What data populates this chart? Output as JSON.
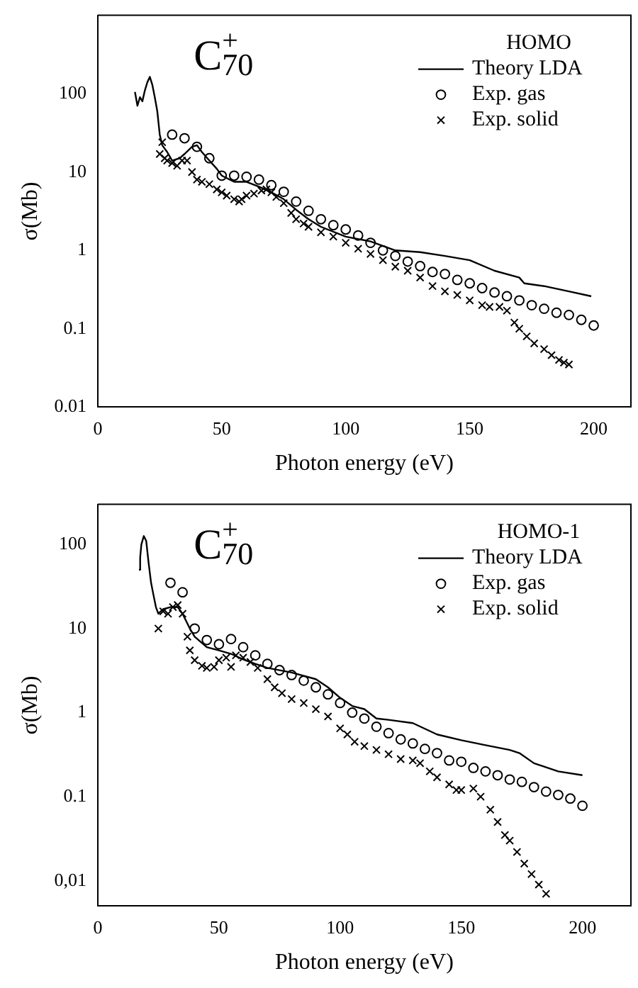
{
  "chart_data": [
    {
      "type": "line",
      "annotations": [
        "C$^{+}$$_{70}$"
      ],
      "legend_title": "HOMO",
      "xlabel": "Photon energy (eV)",
      "ylabel": "σ(Mb)",
      "log": "y",
      "legend": "top right",
      "grid": false,
      "xlim": [
        0,
        215
      ],
      "xticks": [
        0,
        50,
        100,
        150,
        200
      ],
      "ylim": [
        0.01,
        1000
      ],
      "yticks": [
        0.01,
        0.1,
        1,
        10,
        100
      ],
      "series": [
        {
          "name": "Theory LDA",
          "type": "line",
          "marker": "none",
          "line_style": "solid",
          "color": "#000000",
          "x": [
            15,
            16,
            17,
            18,
            19,
            20,
            21,
            22,
            23,
            24,
            25,
            26,
            28,
            30,
            33,
            35,
            38,
            40,
            42,
            45,
            48,
            50,
            55,
            60,
            65,
            70,
            75,
            80,
            85,
            90,
            100,
            110,
            120,
            130,
            140,
            150,
            160,
            170,
            172,
            180,
            190,
            199
          ],
          "values": [
            105,
            70,
            90,
            80,
            110,
            140,
            164,
            130,
            90,
            60,
            30,
            22,
            18,
            14,
            15,
            17,
            21,
            22,
            18,
            14,
            11,
            9,
            7.5,
            7.5,
            6.5,
            5.5,
            4.5,
            3.3,
            2.5,
            2,
            1.5,
            1.3,
            1,
            0.95,
            0.85,
            0.75,
            0.55,
            0.45,
            0.38,
            0.35,
            0.3,
            0.26
          ]
        },
        {
          "name": "Exp. gas",
          "type": "scatter",
          "marker": "circle",
          "color": "#000000",
          "x": [
            30,
            35,
            40,
            45,
            50,
            55,
            60,
            65,
            70,
            75,
            80,
            85,
            90,
            95,
            100,
            105,
            110,
            115,
            120,
            125,
            130,
            135,
            140,
            145,
            150,
            155,
            160,
            165,
            170,
            175,
            180,
            185,
            190,
            195,
            200
          ],
          "values": [
            30,
            27,
            21,
            15,
            9,
            9,
            8.7,
            8,
            6.8,
            5.6,
            4.2,
            3.2,
            2.5,
            2.1,
            1.85,
            1.55,
            1.25,
            1,
            0.85,
            0.72,
            0.63,
            0.53,
            0.5,
            0.42,
            0.38,
            0.33,
            0.29,
            0.26,
            0.23,
            0.2,
            0.18,
            0.16,
            0.15,
            0.13,
            0.11
          ]
        },
        {
          "name": "Exp. solid",
          "type": "scatter",
          "marker": "cross",
          "color": "#000000",
          "x": [
            25,
            26,
            27,
            28,
            30,
            32,
            34,
            36,
            38,
            40,
            42,
            45,
            48,
            50,
            52,
            55,
            57,
            58,
            60,
            63,
            66,
            68,
            70,
            72,
            75,
            78,
            80,
            83,
            85,
            90,
            95,
            100,
            105,
            110,
            115,
            120,
            125,
            130,
            135,
            140,
            145,
            150,
            155,
            158,
            162,
            165,
            168,
            170,
            173,
            176,
            180,
            183,
            186,
            188,
            190
          ],
          "values": [
            17,
            24,
            15,
            14,
            13,
            12,
            14,
            14,
            10,
            8,
            7.5,
            7,
            6,
            5.5,
            5,
            4.5,
            4.2,
            4.5,
            5,
            5.3,
            5.8,
            6,
            5.5,
            4.8,
            4,
            3,
            2.5,
            2.2,
            2,
            1.7,
            1.5,
            1.25,
            1.05,
            0.9,
            0.75,
            0.62,
            0.55,
            0.45,
            0.35,
            0.3,
            0.27,
            0.23,
            0.2,
            0.19,
            0.19,
            0.17,
            0.12,
            0.1,
            0.08,
            0.065,
            0.055,
            0.046,
            0.04,
            0.037,
            0.035
          ]
        }
      ]
    },
    {
      "type": "line",
      "annotations": [
        "C$^{+}$$_{70}$"
      ],
      "legend_title": "HOMO-1",
      "xlabel": "Photon energy (eV)",
      "ylabel": "σ(Mb)",
      "log": "y",
      "legend": "top right",
      "grid": false,
      "xlim": [
        0,
        220
      ],
      "xticks": [
        0,
        50,
        100,
        150,
        200
      ],
      "ylim": [
        0.005,
        300
      ],
      "yticks": [
        {
          "value": 0.01,
          "label": "0,01"
        },
        0.1,
        1,
        10,
        100
      ],
      "series": [
        {
          "name": "Theory LDA",
          "type": "line",
          "marker": "none",
          "line_style": "solid",
          "color": "#000000",
          "x": [
            17,
            17.5,
            18,
            19,
            20,
            21,
            22,
            23,
            24,
            25,
            26,
            27,
            30,
            33,
            35,
            38,
            40,
            45,
            50,
            55,
            60,
            65,
            70,
            80,
            90,
            95,
            100,
            105,
            110,
            115,
            120,
            130,
            140,
            150,
            160,
            170,
            174,
            180,
            190,
            200
          ],
          "values": [
            50,
            70,
            100,
            126,
            110,
            60,
            35,
            25,
            18,
            15,
            16,
            17,
            18,
            18,
            15,
            10,
            8,
            6,
            5.5,
            5,
            4.3,
            3.8,
            3.4,
            3,
            2.5,
            2,
            1.5,
            1.2,
            1.1,
            0.85,
            0.82,
            0.75,
            0.55,
            0.47,
            0.41,
            0.36,
            0.33,
            0.25,
            0.2,
            0.18
          ]
        },
        {
          "name": "Exp. gas",
          "type": "scatter",
          "marker": "circle",
          "color": "#000000",
          "x": [
            30,
            35,
            40,
            45,
            50,
            55,
            60,
            65,
            70,
            75,
            80,
            85,
            90,
            95,
            100,
            105,
            110,
            115,
            120,
            125,
            130,
            135,
            140,
            145,
            150,
            155,
            160,
            165,
            170,
            175,
            180,
            185,
            190,
            195,
            200
          ],
          "values": [
            35,
            27,
            10,
            7.3,
            6.5,
            7.5,
            6,
            4.8,
            3.8,
            3.2,
            2.8,
            2.4,
            2,
            1.65,
            1.3,
            1,
            0.85,
            0.68,
            0.57,
            0.48,
            0.43,
            0.37,
            0.33,
            0.27,
            0.26,
            0.22,
            0.2,
            0.18,
            0.16,
            0.15,
            0.13,
            0.115,
            0.105,
            0.095,
            0.078
          ]
        },
        {
          "name": "Exp. solid",
          "type": "scatter",
          "marker": "cross",
          "color": "#000000",
          "x": [
            25,
            27,
            29,
            31,
            33,
            35,
            37,
            38,
            40,
            43,
            45,
            48,
            50,
            53,
            55,
            57,
            60,
            63,
            66,
            70,
            73,
            76,
            80,
            85,
            90,
            95,
            100,
            103,
            106,
            110,
            115,
            120,
            125,
            130,
            133,
            137,
            140,
            145,
            148,
            150,
            155,
            158,
            162,
            165,
            168,
            170,
            173,
            176,
            179,
            182,
            185
          ],
          "values": [
            10,
            16,
            15,
            18,
            19,
            15,
            8,
            5.5,
            4.2,
            3.6,
            3.4,
            3.5,
            4.2,
            4.5,
            3.5,
            4.8,
            4.5,
            4,
            3.4,
            2.5,
            2,
            1.7,
            1.45,
            1.3,
            1.1,
            0.9,
            0.65,
            0.55,
            0.45,
            0.4,
            0.36,
            0.32,
            0.28,
            0.27,
            0.25,
            0.2,
            0.17,
            0.14,
            0.12,
            0.12,
            0.125,
            0.1,
            0.07,
            0.05,
            0.035,
            0.03,
            0.022,
            0.016,
            0.012,
            0.009,
            0.007
          ]
        }
      ]
    }
  ]
}
